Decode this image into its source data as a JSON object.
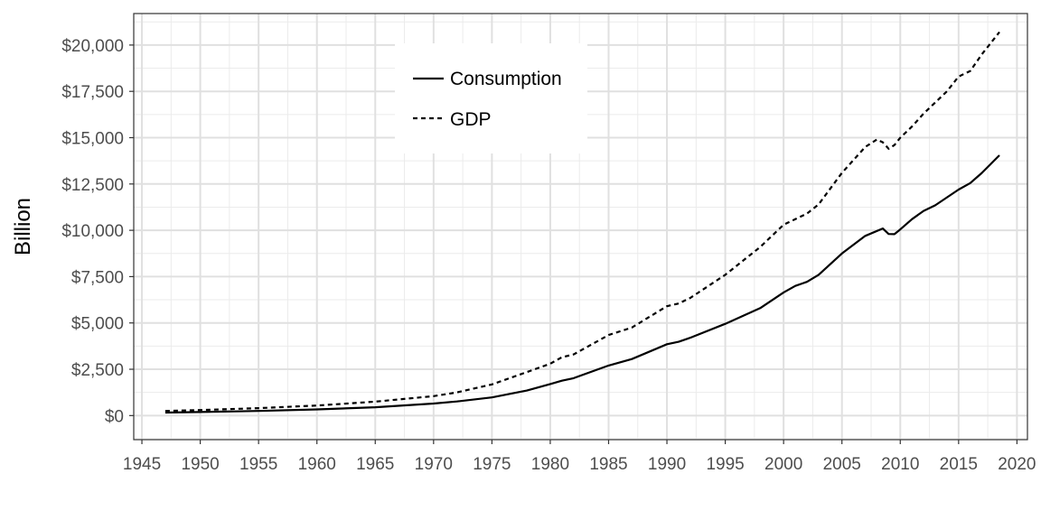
{
  "chart_data": {
    "type": "line",
    "title": "",
    "xlabel": "",
    "ylabel": "Billion",
    "xlim": [
      1944.3,
      2020.9
    ],
    "ylim": [
      -1300,
      21700
    ],
    "x_ticks": [
      1945,
      1950,
      1955,
      1960,
      1965,
      1970,
      1975,
      1980,
      1985,
      1990,
      1995,
      2000,
      2005,
      2010,
      2015,
      2020
    ],
    "x_tick_labels": [
      "1945",
      "1950",
      "1955",
      "1960",
      "1965",
      "1970",
      "1975",
      "1980",
      "1985",
      "1990",
      "1995",
      "2000",
      "2005",
      "2010",
      "2015",
      "2020"
    ],
    "y_ticks": [
      0,
      2500,
      5000,
      7500,
      10000,
      12500,
      15000,
      17500,
      20000
    ],
    "y_tick_labels": [
      "$0",
      "$2,500",
      "$5,000",
      "$7,500",
      "$10,000",
      "$12,500",
      "$15,000",
      "$17,500",
      "$20,000"
    ],
    "grid": true,
    "legend_position": "top-center",
    "series": [
      {
        "name": "Consumption",
        "line_style": "solid",
        "color": "#000000",
        "x": [
          1947,
          1950,
          1955,
          1960,
          1965,
          1970,
          1972,
          1975,
          1978,
          1980,
          1981,
          1982,
          1985,
          1987,
          1990,
          1991,
          1992,
          1995,
          1998,
          2000,
          2001,
          2002,
          2003,
          2005,
          2007,
          2008.5,
          2009,
          2009.5,
          2010,
          2011,
          2012,
          2013,
          2015,
          2016,
          2017,
          2018.5
        ],
        "values": [
          160,
          190,
          250,
          330,
          450,
          650,
          760,
          980,
          1350,
          1700,
          1880,
          2020,
          2700,
          3050,
          3850,
          3980,
          4200,
          4950,
          5800,
          6650,
          7000,
          7220,
          7600,
          8750,
          9700,
          10100,
          9800,
          9790,
          10050,
          10600,
          11050,
          11350,
          12200,
          12550,
          13100,
          14050
        ]
      },
      {
        "name": "GDP",
        "line_style": "dashed",
        "color": "#000000",
        "x": [
          1947,
          1950,
          1955,
          1960,
          1965,
          1970,
          1972,
          1975,
          1978,
          1980,
          1981,
          1982,
          1985,
          1987,
          1990,
          1991,
          1992,
          1995,
          1998,
          2000,
          2001,
          2002,
          2003,
          2005,
          2007,
          2008,
          2008.5,
          2009,
          2009.5,
          2010,
          2011,
          2012,
          2013,
          2014,
          2015,
          2016,
          2017,
          2018.5
        ],
        "values": [
          250,
          300,
          400,
          540,
          750,
          1050,
          1250,
          1680,
          2350,
          2800,
          3150,
          3300,
          4350,
          4750,
          5900,
          6050,
          6350,
          7600,
          9100,
          10300,
          10600,
          10900,
          11400,
          13100,
          14500,
          14900,
          14750,
          14400,
          14600,
          15000,
          15600,
          16300,
          16900,
          17500,
          18300,
          18600,
          19500,
          20700
        ]
      }
    ]
  }
}
